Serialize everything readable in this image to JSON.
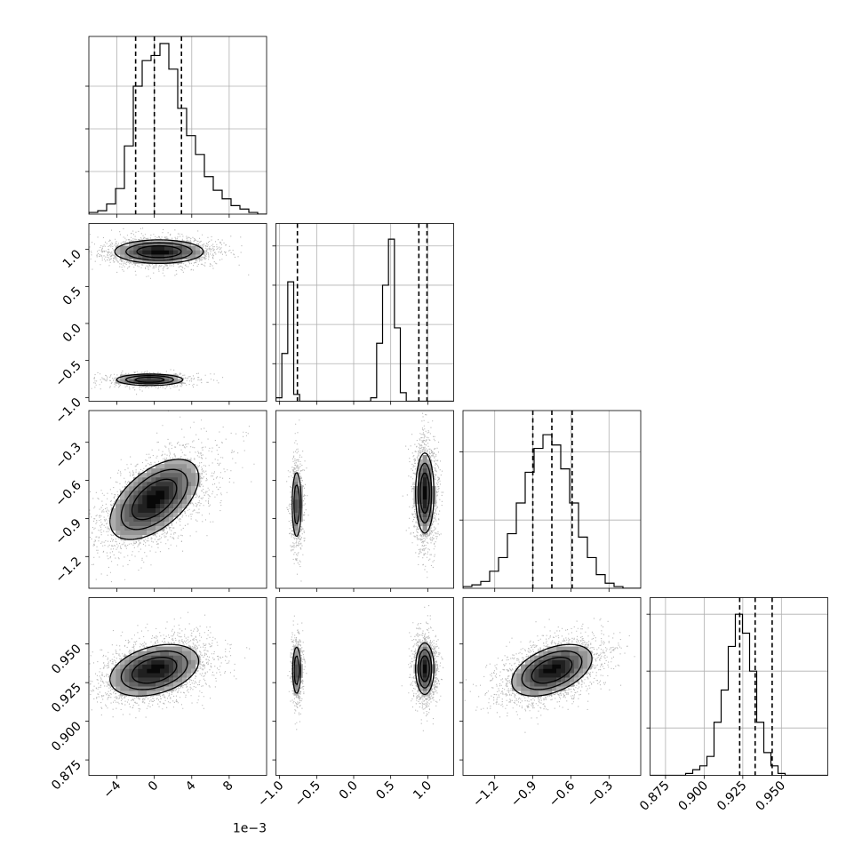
{
  "chart_data": {
    "type": "corner",
    "grid": true,
    "parameters": 4,
    "x_offset_text": "1e−3",
    "axes": [
      {
        "range": [
          -7,
          12
        ],
        "scale": 0.001,
        "ticks": [
          -4,
          0,
          4,
          8
        ],
        "tick_labels": [
          "−4",
          "0",
          "4",
          "8"
        ]
      },
      {
        "range": [
          -1.05,
          1.35
        ],
        "ticks": [
          -1.0,
          -0.5,
          0.0,
          0.5,
          1.0
        ],
        "tick_labels": [
          "−1.0",
          "−0.5",
          "0.0",
          "0.5",
          "1.0"
        ]
      },
      {
        "range": [
          -1.45,
          -0.05
        ],
        "ticks": [
          -1.2,
          -0.9,
          -0.6,
          -0.3
        ],
        "tick_labels": [
          "−1.2",
          "−0.9",
          "−0.6",
          "−0.3"
        ]
      },
      {
        "range": [
          0.865,
          0.98
        ],
        "ticks": [
          0.875,
          0.9,
          0.925,
          0.95
        ],
        "tick_labels": [
          "0.875",
          "0.900",
          "0.925",
          "0.950"
        ]
      }
    ],
    "diagonal": [
      {
        "parameter": 0,
        "bin_start": -7,
        "bin_width": 0.95,
        "counts": [
          1,
          2,
          6,
          15,
          40,
          75,
          90,
          93,
          100,
          85,
          62,
          46,
          35,
          22,
          14,
          9,
          5,
          3,
          1,
          0
        ],
        "ymax": 100,
        "ygrid": [
          25,
          50,
          75
        ],
        "quantiles": [
          -2.0,
          0.0,
          2.9
        ]
      },
      {
        "parameter": 1,
        "bin_start": -1.05,
        "bin_width": 0.08,
        "counts": [
          2,
          28,
          70,
          4,
          0,
          0,
          0,
          0,
          0,
          0,
          0,
          0,
          0,
          0,
          0,
          0,
          2,
          34,
          68,
          95,
          43,
          5,
          0,
          0,
          0,
          0,
          0,
          0,
          0,
          0
        ],
        "ymax": 100,
        "ygrid": [
          22,
          45,
          68,
          91
        ],
        "quantiles": [
          -0.76,
          0.88,
          0.99
        ]
      },
      {
        "parameter": 2,
        "bin_start": -1.45,
        "bin_width": 0.07,
        "counts": [
          1,
          2,
          4,
          10,
          18,
          32,
          50,
          68,
          82,
          90,
          84,
          70,
          50,
          30,
          18,
          8,
          3,
          1,
          0,
          0
        ],
        "ymax": 100,
        "ygrid": [
          40,
          80
        ],
        "quantiles": [
          -0.9,
          -0.75,
          -0.59
        ]
      },
      {
        "parameter": 3,
        "bin_start": 0.865,
        "bin_width": 0.0046,
        "counts": [
          0,
          0,
          0,
          0,
          0,
          1,
          3,
          5,
          10,
          28,
          45,
          68,
          85,
          75,
          55,
          28,
          12,
          5,
          1,
          0,
          0,
          0,
          0,
          0,
          0
        ],
        "ymax": 90,
        "ygrid": [
          25,
          55,
          85
        ],
        "quantiles": [
          0.923,
          0.933,
          0.944
        ]
      }
    ],
    "pairs": [
      {
        "x": 0,
        "y": 1,
        "modes": [
          {
            "mx": 0.5,
            "my": 0.97,
            "sx": 2.7,
            "sy": 0.09,
            "rho": 0.0,
            "w": 0.74
          },
          {
            "mx": -0.5,
            "my": -0.76,
            "sx": 2.1,
            "sy": 0.045,
            "rho": 0.0,
            "w": 0.26
          }
        ]
      },
      {
        "x": 0,
        "y": 2,
        "modes": [
          {
            "mx": 0.0,
            "my": -0.75,
            "sx": 2.7,
            "sy": 0.18,
            "rho": 0.55,
            "w": 1.0
          }
        ]
      },
      {
        "x": 0,
        "y": 3,
        "modes": [
          {
            "mx": 0.0,
            "my": 0.933,
            "sx": 2.7,
            "sy": 0.0095,
            "rho": 0.35,
            "w": 1.0
          }
        ]
      },
      {
        "x": 1,
        "y": 2,
        "modes": [
          {
            "mx": -0.77,
            "my": -0.79,
            "sx": 0.04,
            "sy": 0.17,
            "rho": 0.0,
            "w": 0.26
          },
          {
            "mx": 0.96,
            "my": -0.7,
            "sx": 0.07,
            "sy": 0.18,
            "rho": 0.0,
            "w": 0.74
          }
        ]
      },
      {
        "x": 1,
        "y": 3,
        "modes": [
          {
            "mx": -0.77,
            "my": 0.933,
            "sx": 0.035,
            "sy": 0.01,
            "rho": 0.0,
            "w": 0.26
          },
          {
            "mx": 0.96,
            "my": 0.934,
            "sx": 0.07,
            "sy": 0.0095,
            "rho": 0.0,
            "w": 0.74
          }
        ]
      },
      {
        "x": 2,
        "y": 3,
        "modes": [
          {
            "mx": -0.75,
            "my": 0.933,
            "sx": 0.18,
            "sy": 0.0095,
            "rho": 0.45,
            "w": 1.0
          }
        ]
      }
    ],
    "contour_levels": [
      0.39,
      0.86,
      1.54
    ]
  }
}
